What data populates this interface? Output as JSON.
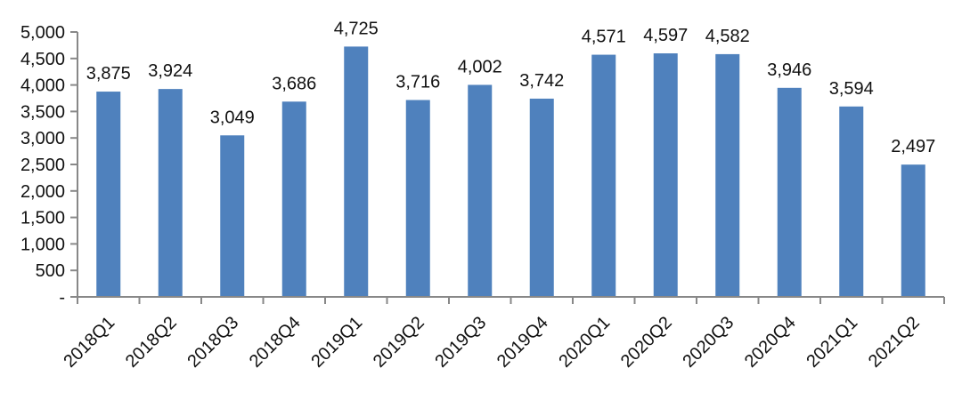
{
  "chart_data": {
    "type": "bar",
    "title": "",
    "xlabel": "",
    "ylabel": "",
    "categories": [
      "2018Q1",
      "2018Q2",
      "2018Q3",
      "2018Q4",
      "2019Q1",
      "2019Q2",
      "2019Q3",
      "2019Q4",
      "2020Q1",
      "2020Q2",
      "2020Q3",
      "2020Q4",
      "2021Q1",
      "2021Q2"
    ],
    "values": [
      3875,
      3924,
      3049,
      3686,
      4725,
      3716,
      4002,
      3742,
      4571,
      4597,
      4582,
      3946,
      3594,
      2497
    ],
    "data_labels": [
      "3,875",
      "3,924",
      "3,049",
      "3,686",
      "4,725",
      "3,716",
      "4,002",
      "3,742",
      "4,571",
      "4,597",
      "4,582",
      "3,946",
      "3,594",
      "2,497"
    ],
    "ylim": [
      0,
      5000
    ],
    "yticks": [
      0,
      500,
      1000,
      1500,
      2000,
      2500,
      3000,
      3500,
      4000,
      4500,
      5000
    ],
    "ytick_labels": [
      "-",
      "500",
      "1,000",
      "1,500",
      "2,000",
      "2,500",
      "3,000",
      "3,500",
      "4,000",
      "4,500",
      "5,000"
    ],
    "grid": false,
    "legend": "none",
    "bar_color": "#4F81BD",
    "axis_color": "#888888"
  }
}
